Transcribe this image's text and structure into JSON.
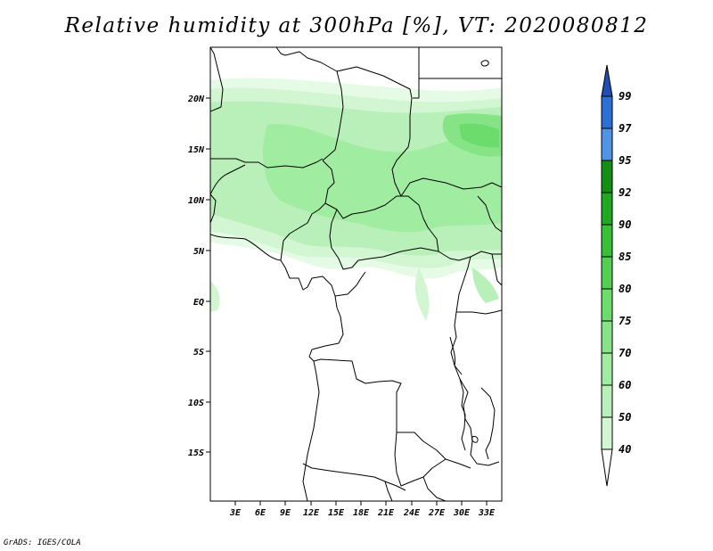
{
  "title": "Relative humidity at 300hPa [%], VT: 2020080812",
  "credit": "GrADS: IGES/COLA",
  "map": {
    "lat_labels": [
      "20N",
      "15N",
      "10N",
      "5N",
      "EQ",
      "5S",
      "10S",
      "15S"
    ],
    "lon_labels": [
      "3E",
      "6E",
      "9E",
      "12E",
      "15E",
      "18E",
      "21E",
      "24E",
      "27E",
      "30E",
      "33E"
    ]
  },
  "colorbar": {
    "levels": [
      "40",
      "50",
      "60",
      "70",
      "75",
      "80",
      "85",
      "90",
      "92",
      "95",
      "97",
      "99"
    ],
    "colors": [
      "#e6fbe6",
      "#d2f5d2",
      "#b9f0b9",
      "#a0eca0",
      "#86e486",
      "#6cdc6c",
      "#52d052",
      "#38c038",
      "#21a821",
      "#138f13",
      "#4f94e6",
      "#2c6fd6",
      "#1d4fb7"
    ]
  }
}
